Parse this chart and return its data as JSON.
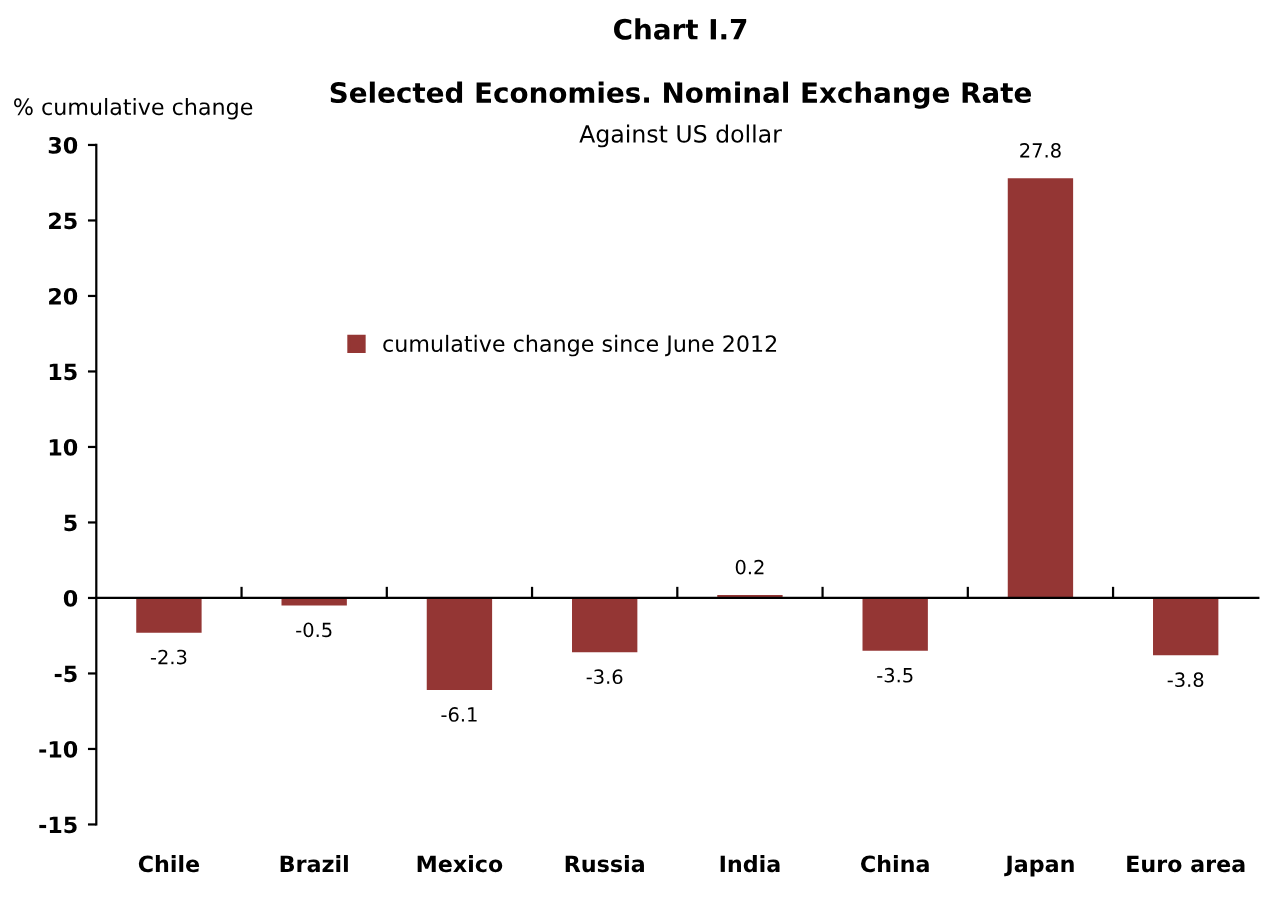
{
  "chart_data": {
    "type": "bar",
    "title": "Chart I.7",
    "subtitle": "Selected Economies. Nominal Exchange Rate",
    "annotations": [
      "Against US dollar"
    ],
    "ylabel": "% cumulative change",
    "categories": [
      "Chile",
      "Brazil",
      "Mexico",
      "Russia",
      "India",
      "China",
      "Japan",
      "Euro area"
    ],
    "series": [
      {
        "name": "cumulative change since June 2012",
        "color": "#943634",
        "values": [
          -2.3,
          -0.5,
          -6.1,
          -3.6,
          0.2,
          -3.5,
          27.8,
          -3.8
        ]
      }
    ],
    "ylim": [
      -15,
      30
    ],
    "yticks": [
      -15,
      -10,
      -5,
      0,
      5,
      10,
      15,
      20,
      25,
      30
    ],
    "data_labels": true,
    "legend": "top left"
  }
}
